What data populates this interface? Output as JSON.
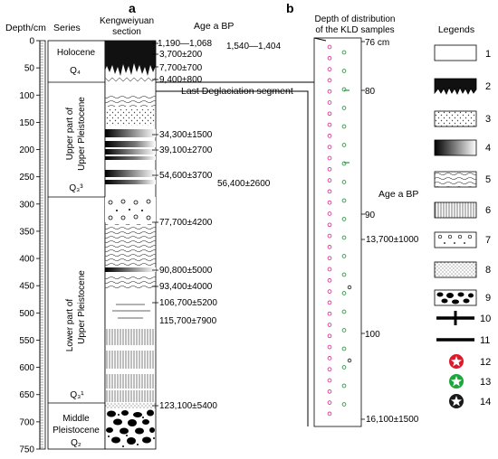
{
  "panel_labels": {
    "a": "a",
    "b": "b"
  },
  "headers": {
    "depth": "Depth/cm",
    "series": "Series",
    "section_line1": "Kengweiyuan",
    "section_line2": "section",
    "age": "Age a BP",
    "kld_line1": "Depth of distribution",
    "kld_line2": "of the KLD samples",
    "legends": "Legends"
  },
  "depth_ticks": [
    "0",
    "50",
    "100",
    "150",
    "200",
    "250",
    "300",
    "350",
    "400",
    "450",
    "500",
    "550",
    "600",
    "650",
    "700",
    "750"
  ],
  "series": {
    "holocene": "Holocene",
    "holocene_symbol": "Q₄",
    "upper_upper_line1": "Upper part of",
    "upper_upper_line2": "Upper Pleistocene",
    "upper_upper_symbol": "Q₃³",
    "lower_upper_line1": "Upper Pleistocene",
    "lower_upper_line2": "Lower part of",
    "lower_upper_symbol": "Q₃¹",
    "middle_line1": "Middle",
    "middle_line2": "Pleistocene",
    "middle_symbol": "Q₂"
  },
  "ages": [
    "1,190—1,068",
    "1,540—1,404",
    "3,700±200",
    "7,700±700",
    "9,400±800",
    "34,300±1500",
    "39,100±2700",
    "54,600±3700",
    "56,400±2600",
    "77,700±4200",
    "90,800±5000",
    "93,400±4000",
    "106,700±5200",
    "115,700±7900",
    "123,100±5400"
  ],
  "last_deglaciation": "Last Deglaciation segment",
  "kld": {
    "depth_labels": [
      "76 cm",
      "80",
      "90",
      "100"
    ],
    "age_header": "Age a BP",
    "ages": [
      "13,700±1000",
      "16,100±1500"
    ]
  },
  "legend_numbers": [
    "1",
    "2",
    "3",
    "4",
    "5",
    "6",
    "7",
    "8",
    "9",
    "10",
    "11",
    "12",
    "13",
    "14"
  ],
  "colors": {
    "red_star": "#e0182a",
    "green_star": "#1aa83a",
    "black_star": "#1a1a1a",
    "pink_sample": "#e0359a",
    "green_sample": "#2a9a40"
  }
}
